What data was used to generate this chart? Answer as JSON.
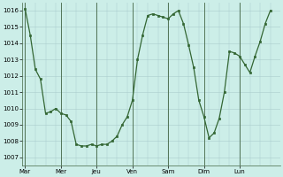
{
  "background_color": "#cceee8",
  "grid_color": "#aacccc",
  "line_color": "#336633",
  "marker_color": "#336633",
  "x_labels": [
    "Mar",
    "Mer",
    "Jeu",
    "Ven",
    "Sam",
    "Dim",
    "Lun"
  ],
  "ylim": [
    1006.5,
    1016.5
  ],
  "yticks": [
    1007,
    1008,
    1009,
    1010,
    1011,
    1012,
    1013,
    1014,
    1015,
    1016
  ],
  "px": [
    0,
    0.5,
    1,
    1.5,
    2,
    2.5,
    3,
    3.5,
    4,
    4.5,
    5,
    5.5,
    6,
    6.5,
    7,
    7.5,
    8,
    8.5,
    9,
    9.5,
    10,
    10.5,
    11,
    11.5,
    12,
    12.5,
    13,
    13.5,
    14,
    14.5,
    15,
    15.5,
    16,
    16.5,
    17,
    17.5,
    18,
    18.5,
    19,
    19.5,
    20,
    20.5,
    21,
    21.5,
    22,
    22.5,
    23,
    23.5,
    24
  ],
  "py": [
    1016.1,
    1014.5,
    1012.4,
    1011.8,
    1009.7,
    1009.8,
    1010.0,
    1009.7,
    1009.6,
    1009.2,
    1007.8,
    1007.7,
    1007.7,
    1007.8,
    1007.7,
    1007.8,
    1007.8,
    1008.0,
    1008.3,
    1009.0,
    1009.5,
    1010.5,
    1013.0,
    1014.5,
    1015.7,
    1015.8,
    1015.7,
    1015.6,
    1015.5,
    1015.8,
    1016.0,
    1015.2,
    1013.9,
    1012.5,
    1010.5,
    1009.5,
    1008.2,
    1008.5,
    1009.4,
    1011.0,
    1013.5,
    1013.4,
    1013.2,
    1012.7,
    1012.2,
    1013.2,
    1014.1,
    1015.2,
    1016.0
  ],
  "xlim": [
    -0.3,
    25.0
  ]
}
